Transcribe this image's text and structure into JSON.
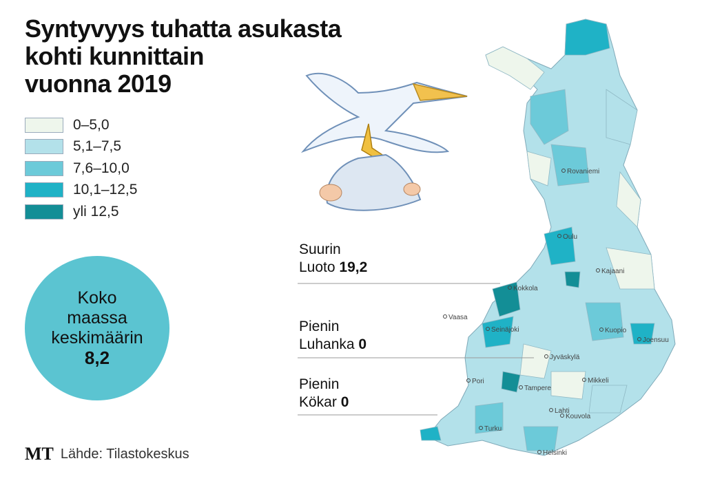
{
  "title_lines": [
    "Syntyvyys tuhatta asukasta",
    "kohti kunnittain",
    "vuonna 2019"
  ],
  "legend": [
    {
      "label": "0–5,0",
      "color": "#eef6ec"
    },
    {
      "label": "5,1–7,5",
      "color": "#b3e1ea"
    },
    {
      "label": "7,6–10,0",
      "color": "#6ccad9"
    },
    {
      "label": "10,1–12,5",
      "color": "#1fb2c6"
    },
    {
      "label": "yli 12,5",
      "color": "#138e96"
    }
  ],
  "average": {
    "lines": [
      "Koko",
      "maassa",
      "keskimäärin"
    ],
    "value": "8,2",
    "color": "#5bc4d1"
  },
  "annotations": [
    {
      "heading": "Suurin",
      "place": "Luoto",
      "value": "19,2"
    },
    {
      "heading": "Pienin",
      "place": "Luhanka",
      "value": "0"
    },
    {
      "heading": "Pienin",
      "place": "Kökar",
      "value": "0"
    }
  ],
  "cities": [
    "Rovaniemi",
    "Oulu",
    "Kajaani",
    "Kokkola",
    "Vaasa",
    "Seinäjoki",
    "Kuopio",
    "Joensuu",
    "Jyväskylä",
    "Pori",
    "Tampere",
    "Mikkeli",
    "Lahti",
    "Kouvola",
    "Turku",
    "Helsinki"
  ],
  "footer": {
    "logo": "MT",
    "source": "Lähde: Tilastokeskus"
  }
}
